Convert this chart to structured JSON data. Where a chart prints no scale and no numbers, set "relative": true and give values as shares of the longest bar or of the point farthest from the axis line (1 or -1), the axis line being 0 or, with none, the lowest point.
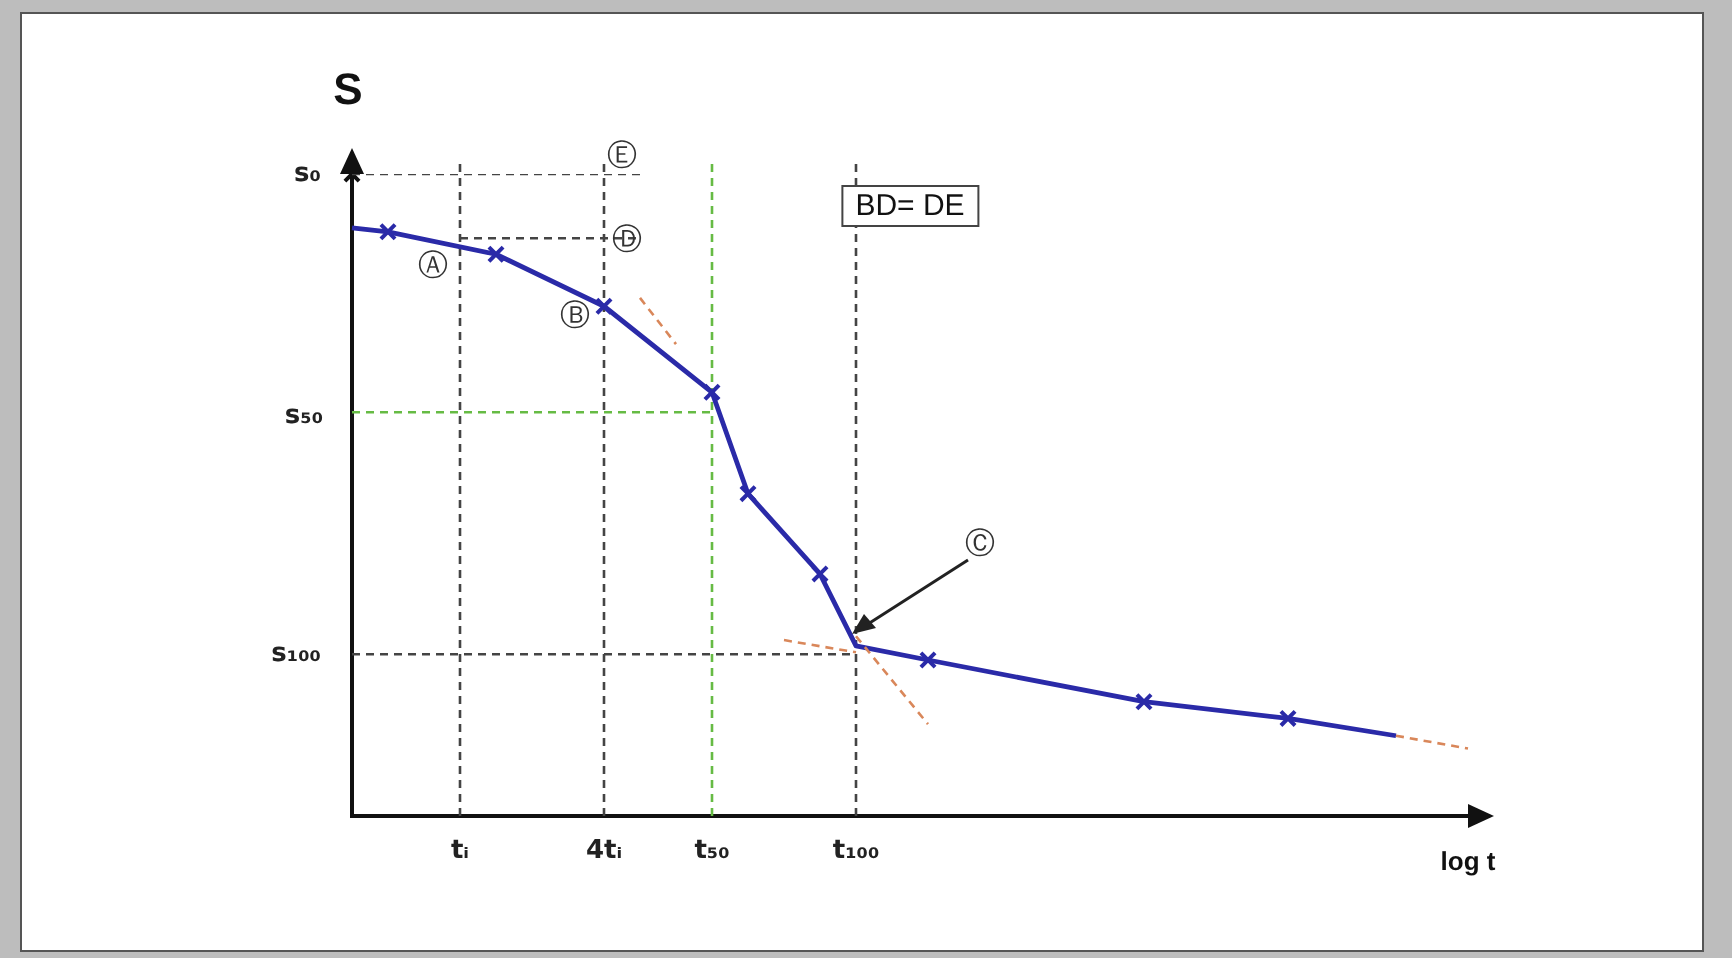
{
  "chart_data": {
    "type": "line",
    "xlabel": "log t",
    "ylabel": "S",
    "relative": true,
    "categories": [
      null,
      null,
      null,
      "tᵢ",
      null,
      null,
      null,
      "4tᵢ",
      null,
      null,
      "t₅₀",
      null,
      null,
      null,
      "t₁₀₀",
      null,
      null,
      null,
      null,
      null,
      null,
      null,
      null,
      null,
      null,
      null,
      null,
      null,
      null,
      null,
      null,
      null
    ],
    "grid": false,
    "legend": false,
    "ref_lines": [
      {
        "axis": "x",
        "value": "tᵢ",
        "color": "#444444",
        "line_style": "dashed"
      },
      {
        "axis": "x",
        "value": "4tᵢ",
        "color": "#444444",
        "line_style": "dashed"
      },
      {
        "axis": "x",
        "value": "t₅₀",
        "color": "#66bb44",
        "line_style": "dashed"
      },
      {
        "axis": "x",
        "value": "t₁₀₀",
        "color": "#444444",
        "line_style": "dashed"
      }
    ],
    "series": [
      {
        "type": "line",
        "color": "#444444",
        "line_style": "dashed",
        "marker": "none",
        "values": [
          1,
          null,
          null,
          null,
          null,
          null,
          null,
          null,
          1,
          null,
          null,
          null,
          null,
          null,
          null,
          null,
          null,
          null,
          null,
          null,
          null,
          null,
          null,
          null,
          null,
          null,
          null,
          null,
          null,
          null,
          null,
          null
        ]
      },
      {
        "type": "line",
        "color": "#444444",
        "line_style": "dashed",
        "marker": "none",
        "values": [
          null,
          null,
          null,
          0.9,
          null,
          null,
          null,
          null,
          0.9,
          null,
          null,
          null,
          null,
          null,
          null,
          null,
          null,
          null,
          null,
          null,
          null,
          null,
          null,
          null,
          null,
          null,
          null,
          null,
          null,
          null,
          null,
          null
        ]
      },
      {
        "type": "line",
        "color": "#66bb44",
        "line_style": "dashed",
        "marker": "none",
        "values": [
          0.629,
          null,
          null,
          null,
          null,
          null,
          null,
          null,
          null,
          null,
          0.629,
          null,
          null,
          null,
          null,
          null,
          null,
          null,
          null,
          null,
          null,
          null,
          null,
          null,
          null,
          null,
          null,
          null,
          null,
          null,
          null,
          null
        ]
      },
      {
        "type": "line",
        "color": "#444444",
        "line_style": "dashed",
        "marker": "none",
        "values": [
          0.252,
          null,
          null,
          null,
          null,
          null,
          null,
          null,
          null,
          null,
          null,
          null,
          null,
          null,
          0.252,
          null,
          null,
          null,
          null,
          null,
          null,
          null,
          null,
          null,
          null,
          null,
          null,
          null,
          null,
          null,
          null,
          null
        ]
      },
      {
        "type": "line",
        "color": "#d9875a",
        "line_style": "dashed",
        "marker": "none",
        "values": [
          null,
          null,
          null,
          null,
          null,
          null,
          null,
          null,
          0.807,
          0.735,
          null,
          null,
          null,
          null,
          null,
          null,
          null,
          null,
          null,
          null,
          null,
          null,
          null,
          null,
          null,
          null,
          null,
          null,
          null,
          null,
          null,
          null
        ]
      },
      {
        "type": "line",
        "color": "#d9875a",
        "line_style": "dashed",
        "marker": "none",
        "values": [
          null,
          null,
          null,
          null,
          null,
          null,
          null,
          null,
          null,
          null,
          null,
          null,
          0.274,
          null,
          0.255,
          null,
          null,
          null,
          null,
          null,
          null,
          null,
          null,
          null,
          null,
          null,
          null,
          null,
          null,
          null,
          null,
          null
        ]
      },
      {
        "type": "line",
        "color": "#d9875a",
        "line_style": "dashed",
        "marker": "none",
        "values": [
          null,
          null,
          null,
          null,
          null,
          null,
          null,
          null,
          null,
          null,
          null,
          null,
          null,
          null,
          0.28,
          null,
          0.143,
          null,
          null,
          null,
          null,
          null,
          null,
          null,
          null,
          null,
          null,
          null,
          null,
          null,
          null,
          null
        ]
      },
      {
        "type": "line",
        "color": "#d9875a",
        "line_style": "dashed",
        "marker": "none",
        "values": [
          null,
          null,
          null,
          null,
          null,
          null,
          null,
          null,
          null,
          null,
          null,
          null,
          null,
          null,
          null,
          null,
          null,
          null,
          null,
          null,
          null,
          null,
          null,
          null,
          null,
          null,
          null,
          null,
          null,
          0.125,
          null,
          0.105
        ]
      },
      {
        "color": "#2a2aa8",
        "line_style": "solid",
        "marker": "none",
        "values": [
          0.916,
          0.91,
          null,
          null,
          0.875,
          null,
          null,
          0.794,
          null,
          null,
          0.66,
          0.502,
          null,
          0.377,
          0.265,
          null,
          0.243,
          null,
          null,
          null,
          null,
          null,
          0.178,
          null,
          null,
          null,
          0.152,
          null,
          null,
          0.125,
          null,
          null
        ]
      },
      {
        "type": "scatter",
        "color": "#2a2aa8",
        "marker": "cross",
        "values": [
          null,
          0.91,
          null,
          null,
          0.875,
          null,
          null,
          0.794,
          null,
          null,
          0.66,
          0.502,
          null,
          0.377,
          null,
          null,
          0.243,
          null,
          null,
          null,
          null,
          null,
          0.178,
          null,
          null,
          null,
          0.152,
          null,
          null,
          null,
          null,
          null
        ]
      },
      {
        "type": "scatter",
        "color": "#111111",
        "marker": "cross",
        "values": [
          1,
          null,
          null,
          null,
          null,
          null,
          null,
          null,
          null,
          null,
          null,
          null,
          null,
          null,
          null,
          null,
          null,
          null,
          null,
          null,
          null,
          null,
          null,
          null,
          null,
          null,
          null,
          null,
          null,
          null,
          null,
          null
        ]
      }
    ],
    "annotations": [
      "s₀",
      "s₅₀",
      "s₁₀₀",
      "Ⓐ",
      "Ⓑ",
      "Ⓒ",
      "Ⓓ",
      "Ⓔ",
      "BD= DE"
    ]
  }
}
